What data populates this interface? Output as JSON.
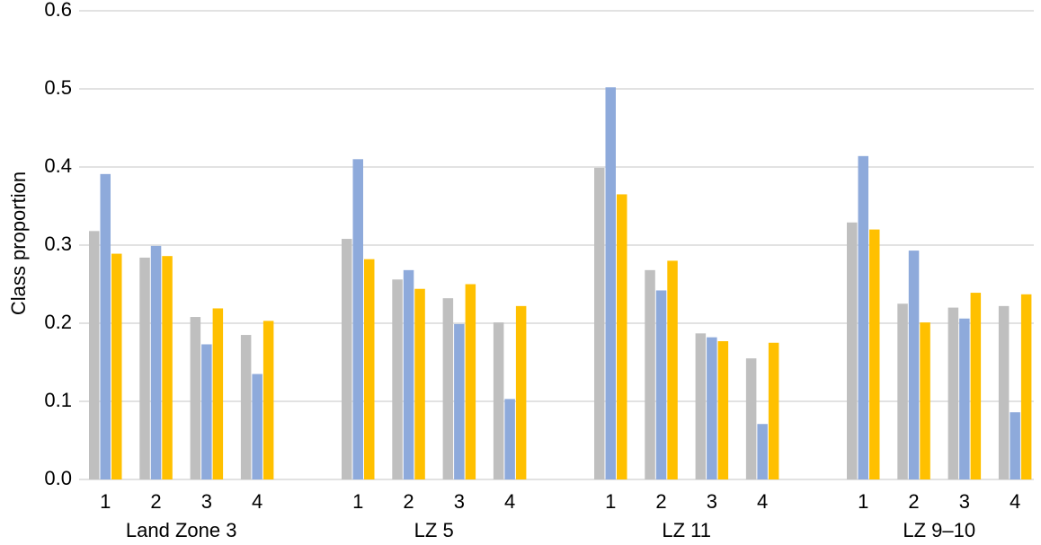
{
  "chart_data": {
    "type": "bar",
    "title": "",
    "xlabel": "",
    "ylabel": "Class proportion",
    "ylim": [
      0,
      0.6
    ],
    "yticks": [
      "0.0",
      "0.1",
      "0.2",
      "0.3",
      "0.4",
      "0.5",
      "0.6"
    ],
    "grid": true,
    "legend": "none",
    "groups": [
      "Land Zone 3",
      "LZ 5",
      "LZ 11",
      "LZ 9–10"
    ],
    "categories": [
      "1",
      "2",
      "3",
      "4"
    ],
    "series_colors": [
      "#bfbfbf",
      "#8eaadb",
      "#ffc000"
    ],
    "data": [
      [
        [
          0.318,
          0.391,
          0.289
        ],
        [
          0.284,
          0.299,
          0.286
        ],
        [
          0.208,
          0.173,
          0.219
        ],
        [
          0.185,
          0.135,
          0.203
        ]
      ],
      [
        [
          0.308,
          0.41,
          0.282
        ],
        [
          0.256,
          0.268,
          0.244
        ],
        [
          0.232,
          0.199,
          0.25
        ],
        [
          0.201,
          0.103,
          0.222
        ]
      ],
      [
        [
          0.399,
          0.502,
          0.365
        ],
        [
          0.268,
          0.242,
          0.28
        ],
        [
          0.187,
          0.182,
          0.177
        ],
        [
          0.155,
          0.071,
          0.175
        ]
      ],
      [
        [
          0.329,
          0.414,
          0.32
        ],
        [
          0.225,
          0.293,
          0.201
        ],
        [
          0.22,
          0.206,
          0.239
        ],
        [
          0.222,
          0.086,
          0.237
        ]
      ]
    ]
  }
}
